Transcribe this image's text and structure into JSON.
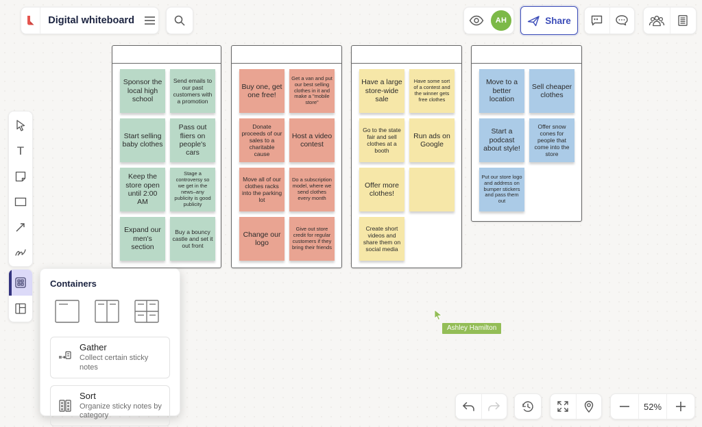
{
  "app": {
    "board_title": "Digital whiteboard",
    "avatar_initials": "AH",
    "share_label": "Share",
    "zoom_level": "52%",
    "collaborator_name": "Ashley Hamilton"
  },
  "header_icons": [
    "lucid-logo",
    "hamburger-menu",
    "search",
    "eye",
    "avatar",
    "paper-plane",
    "comment",
    "chat-bubble",
    "people",
    "notes-document"
  ],
  "toolbar_icons": [
    "select",
    "text",
    "sticky-note",
    "shape",
    "arrow-line",
    "pen",
    "containers",
    "layout"
  ],
  "footer_icons": [
    "undo",
    "redo",
    "history",
    "fullscreen",
    "location-pin",
    "zoom-out",
    "zoom-in"
  ],
  "colors": {
    "accent_blue": "#3b4cb8",
    "avatar_green": "#7cb947",
    "cursor_green": "#93bd56",
    "selected_tool_bg": "#dcdaf8",
    "selected_tool_bar": "#33337e",
    "logo_red": "#e5554f"
  },
  "containers_panel": {
    "title": "Containers",
    "templates": [
      "single-container",
      "two-column-container",
      "four-quadrant-container"
    ],
    "options": [
      {
        "label": "Gather",
        "description": "Collect certain sticky notes"
      },
      {
        "label": "Sort",
        "description": "Organize sticky notes by category"
      }
    ]
  },
  "board": {
    "containers": [
      {
        "color": "#b9d9c7",
        "rows": [
          [
            "Sponsor the local high school",
            "Send emails to our past customers with a promotion"
          ],
          [
            "Start selling baby clothes",
            "Pass out fliers on people's cars"
          ],
          [
            "Keep the store open until 2:00 AM",
            "Stage a controversy so we get in the news–any publicity is good publicity"
          ],
          [
            "Expand our men's section",
            "Buy a bouncy castle and set it out front"
          ]
        ]
      },
      {
        "color": "#e9a492",
        "rows": [
          [
            "Buy one, get one free!",
            "Get a van and put our best selling clothes in it and make a \"mobile store\""
          ],
          [
            "Donate proceeds of our sales to a charitable cause",
            "Host a video contest"
          ],
          [
            "Move all of our clothes racks into the parking lot",
            "Do a subscription model, where we send clothes every month"
          ],
          [
            "Change our logo",
            "Give out store credit for regular customers if they bring their friends"
          ]
        ]
      },
      {
        "color": "#f6e7a8",
        "rows": [
          [
            "Have a large store-wide sale",
            "Have some sort of a contest and the winner gets free clothes"
          ],
          [
            "Go to the state fair and sell clothes at a booth",
            "Run ads on Google"
          ],
          [
            "Offer more clothes!",
            ""
          ],
          [
            "Create short videos and share them on social media",
            null
          ]
        ]
      },
      {
        "color": "#abcbe7",
        "rows": [
          [
            "Move to a better location",
            "Sell cheaper clothes"
          ],
          [
            "Start a podcast about style!",
            "Offer snow cones for people that come into the store"
          ],
          [
            "Put our store logo and address on bumper stickers and pass them out",
            null
          ]
        ]
      }
    ]
  }
}
